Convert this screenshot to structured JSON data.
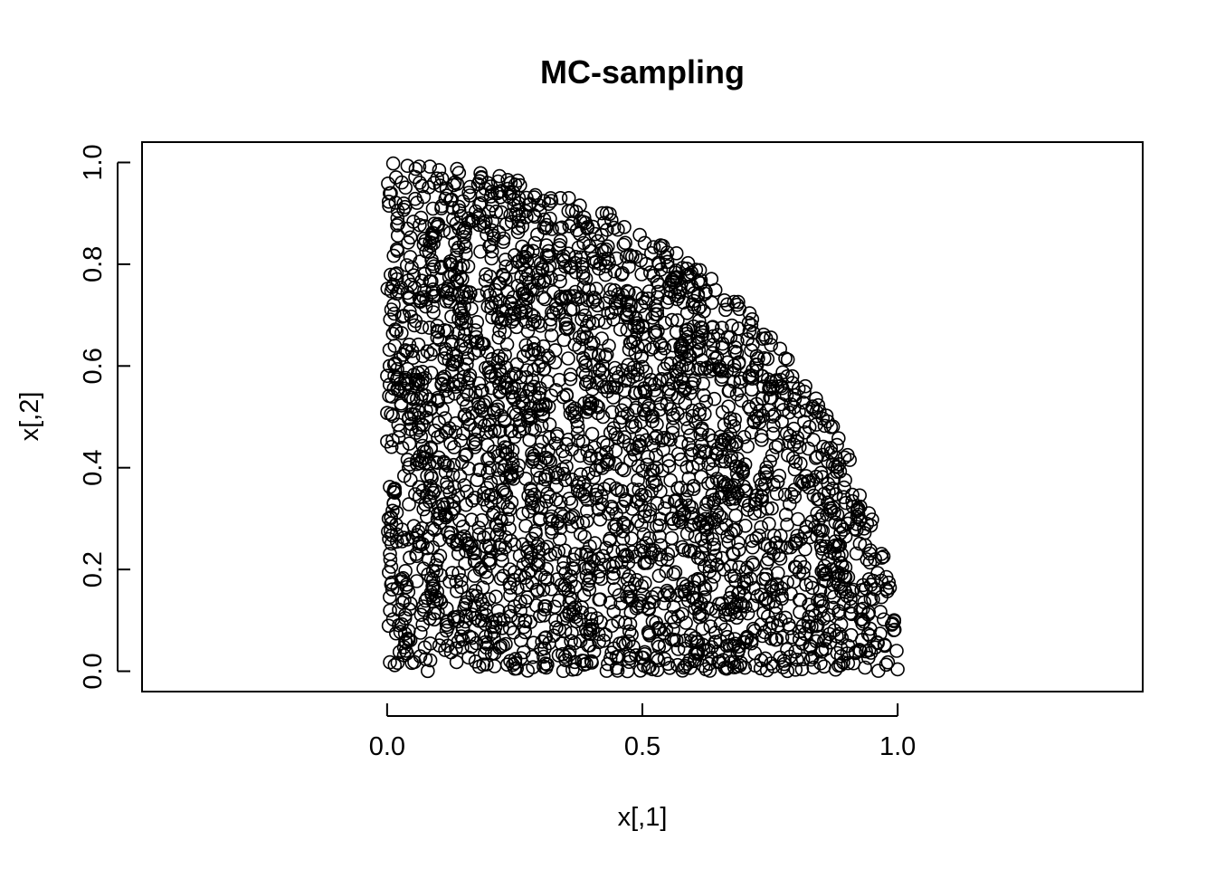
{
  "chart_data": {
    "type": "scatter",
    "title": "MC-sampling",
    "xlabel": "x[,1]",
    "ylabel": "x[,2]",
    "xlim": [
      -0.48,
      1.48
    ],
    "ylim": [
      -0.04,
      1.04
    ],
    "xticks": [
      {
        "value": 0.0,
        "label": "0.0"
      },
      {
        "value": 0.5,
        "label": "0.5"
      },
      {
        "value": 1.0,
        "label": "1.0"
      }
    ],
    "yticks": [
      {
        "value": 0.0,
        "label": "0.0"
      },
      {
        "value": 0.2,
        "label": "0.2"
      },
      {
        "value": 0.4,
        "label": "0.4"
      },
      {
        "value": 0.6,
        "label": "0.6"
      },
      {
        "value": 0.8,
        "label": "0.8"
      },
      {
        "value": 1.0,
        "label": "1.0"
      }
    ],
    "marker": "open-circle",
    "grid": false,
    "region": "points (x, y) with x, y in [0, 1] and x^2 + y^2 <= 1",
    "n_points": 3000,
    "sample_points": [
      [
        0.012,
        0.998
      ],
      [
        0.063,
        0.992
      ],
      [
        0.102,
        0.985
      ],
      [
        0.183,
        0.979
      ],
      [
        0.242,
        0.96
      ],
      [
        0.356,
        0.93
      ],
      [
        0.452,
        0.868
      ],
      [
        0.54,
        0.836
      ],
      [
        0.605,
        0.789
      ],
      [
        0.69,
        0.712
      ],
      [
        0.78,
        0.615
      ],
      [
        0.84,
        0.536
      ],
      [
        0.902,
        0.425
      ],
      [
        0.95,
        0.298
      ],
      [
        0.978,
        0.185
      ],
      [
        0.993,
        0.098
      ],
      [
        0.998,
        0.04
      ],
      [
        0.015,
        0.012
      ],
      [
        0.25,
        0.005
      ],
      [
        0.52,
        0.004
      ],
      [
        0.8,
        0.003
      ],
      [
        0.003,
        0.3
      ],
      [
        0.005,
        0.6
      ],
      [
        0.48,
        0.48
      ],
      [
        0.3,
        0.3
      ]
    ]
  }
}
